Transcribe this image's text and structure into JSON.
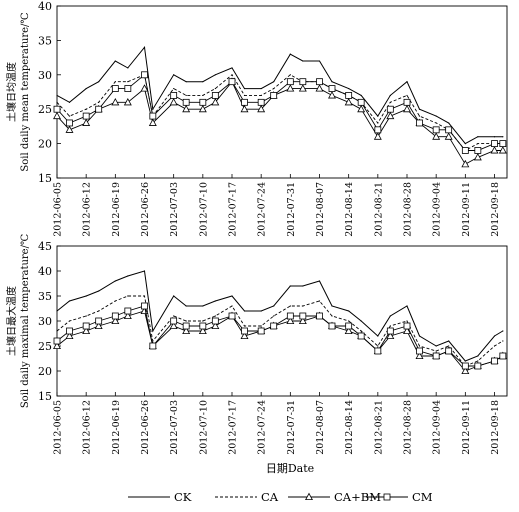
{
  "chart_data": [
    {
      "type": "line",
      "ylabel_cn": "土壤日均温度",
      "ylabel_en": "Soil daily mean temperature/℃",
      "xlabel": "",
      "ylim": [
        15,
        40
      ],
      "yticks": [
        15,
        20,
        25,
        30,
        35,
        40
      ],
      "grid": false,
      "x": [
        "2012-06-05",
        "2012-06-08",
        "2012-06-12",
        "2012-06-15",
        "2012-06-19",
        "2012-06-22",
        "2012-06-26",
        "2012-06-28",
        "2012-07-03",
        "2012-07-06",
        "2012-07-10",
        "2012-07-13",
        "2012-07-17",
        "2012-07-20",
        "2012-07-24",
        "2012-07-27",
        "2012-07-31",
        "2012-08-03",
        "2012-08-07",
        "2012-08-10",
        "2012-08-14",
        "2012-08-17",
        "2012-08-21",
        "2012-08-24",
        "2012-08-28",
        "2012-08-31",
        "2012-09-04",
        "2012-09-07",
        "2012-09-11",
        "2012-09-14",
        "2012-09-18",
        "2012-09-20"
      ],
      "xticks": [
        "2012-06-05",
        "2012-06-12",
        "2012-06-19",
        "2012-06-26",
        "2012-07-03",
        "2012-07-10",
        "2012-07-17",
        "2012-07-24",
        "2012-07-31",
        "2012-08-07",
        "2012-08-14",
        "2012-08-21",
        "2012-08-28",
        "2012-09-04",
        "2012-09-11",
        "2012-09-18"
      ],
      "series": [
        {
          "name": "CK",
          "values": [
            27,
            26,
            28,
            29,
            32,
            31,
            34,
            25,
            30,
            29,
            29,
            30,
            31,
            28,
            28,
            29,
            33,
            32,
            32,
            29,
            28,
            27,
            24,
            27,
            29,
            25,
            24,
            23,
            20,
            21,
            21,
            21
          ]
        },
        {
          "name": "CA",
          "values": [
            26,
            24,
            25,
            26,
            29,
            29,
            30,
            24,
            28,
            27,
            27,
            28,
            30,
            27,
            27,
            28,
            30,
            29,
            29,
            28,
            27,
            26,
            23,
            26,
            27,
            24,
            23,
            22,
            19,
            20,
            20,
            20
          ]
        },
        {
          "name": "CA+BM",
          "values": [
            24,
            22,
            23,
            25,
            26,
            26,
            28,
            23,
            26,
            25,
            25,
            26,
            29,
            25,
            25,
            27,
            28,
            28,
            28,
            27,
            26,
            25,
            21,
            24,
            25,
            23,
            21,
            21,
            17,
            18,
            19,
            19
          ]
        },
        {
          "name": "CM",
          "values": [
            25,
            23,
            24,
            25,
            28,
            28,
            30,
            24,
            27,
            26,
            26,
            27,
            29,
            26,
            26,
            27,
            29,
            29,
            29,
            28,
            27,
            26,
            22,
            25,
            26,
            23,
            22,
            22,
            19,
            19,
            20,
            20
          ]
        }
      ]
    },
    {
      "type": "line",
      "ylabel_cn": "土壤日最大温度",
      "ylabel_en": "Soil daily maximal temperature/℃",
      "xlabel": "日期Date",
      "ylim": [
        15,
        45
      ],
      "yticks": [
        15,
        20,
        25,
        30,
        35,
        40,
        45
      ],
      "grid": false,
      "x": [
        "2012-06-05",
        "2012-06-08",
        "2012-06-12",
        "2012-06-15",
        "2012-06-19",
        "2012-06-22",
        "2012-06-26",
        "2012-06-28",
        "2012-07-03",
        "2012-07-06",
        "2012-07-10",
        "2012-07-13",
        "2012-07-17",
        "2012-07-20",
        "2012-07-24",
        "2012-07-27",
        "2012-07-31",
        "2012-08-03",
        "2012-08-07",
        "2012-08-10",
        "2012-08-14",
        "2012-08-17",
        "2012-08-21",
        "2012-08-24",
        "2012-08-28",
        "2012-08-31",
        "2012-09-04",
        "2012-09-07",
        "2012-09-11",
        "2012-09-14",
        "2012-09-18",
        "2012-09-20"
      ],
      "xticks": [
        "2012-06-05",
        "2012-06-12",
        "2012-06-19",
        "2012-06-26",
        "2012-07-03",
        "2012-07-10",
        "2012-07-17",
        "2012-07-24",
        "2012-07-31",
        "2012-08-07",
        "2012-08-14",
        "2012-08-21",
        "2012-08-28",
        "2012-09-04",
        "2012-09-11",
        "2012-09-18"
      ],
      "series": [
        {
          "name": "CK",
          "values": [
            32,
            34,
            35,
            36,
            38,
            39,
            40,
            28,
            35,
            33,
            33,
            34,
            35,
            32,
            32,
            33,
            37,
            37,
            38,
            33,
            32,
            30,
            27,
            31,
            33,
            27,
            25,
            26,
            22,
            23,
            27,
            28
          ]
        },
        {
          "name": "CA",
          "values": [
            28,
            30,
            31,
            32,
            34,
            35,
            35,
            26,
            31,
            30,
            30,
            31,
            33,
            29,
            29,
            31,
            33,
            33,
            34,
            31,
            30,
            28,
            25,
            29,
            30,
            25,
            24,
            25,
            21,
            22,
            25,
            26
          ]
        },
        {
          "name": "CA+BM",
          "values": [
            25,
            27,
            28,
            29,
            30,
            31,
            32,
            25,
            29,
            28,
            28,
            29,
            31,
            27,
            28,
            29,
            30,
            30,
            31,
            29,
            28,
            27,
            24,
            27,
            28,
            23,
            23,
            24,
            20,
            21,
            22,
            23
          ]
        },
        {
          "name": "CM",
          "values": [
            26,
            28,
            29,
            30,
            31,
            32,
            33,
            25,
            30,
            29,
            29,
            30,
            31,
            28,
            28,
            29,
            31,
            31,
            31,
            29,
            29,
            27,
            24,
            28,
            29,
            24,
            23,
            24,
            21,
            21,
            22,
            23
          ]
        }
      ]
    }
  ],
  "legend": {
    "placement": "bottom",
    "items": [
      {
        "label": "CK",
        "style": "solid",
        "marker": "none"
      },
      {
        "label": "CA",
        "style": "dashed",
        "marker": "none"
      },
      {
        "label": "CA+BM",
        "style": "solid",
        "marker": "triangle"
      },
      {
        "label": "CM",
        "style": "solid",
        "marker": "square"
      }
    ]
  }
}
